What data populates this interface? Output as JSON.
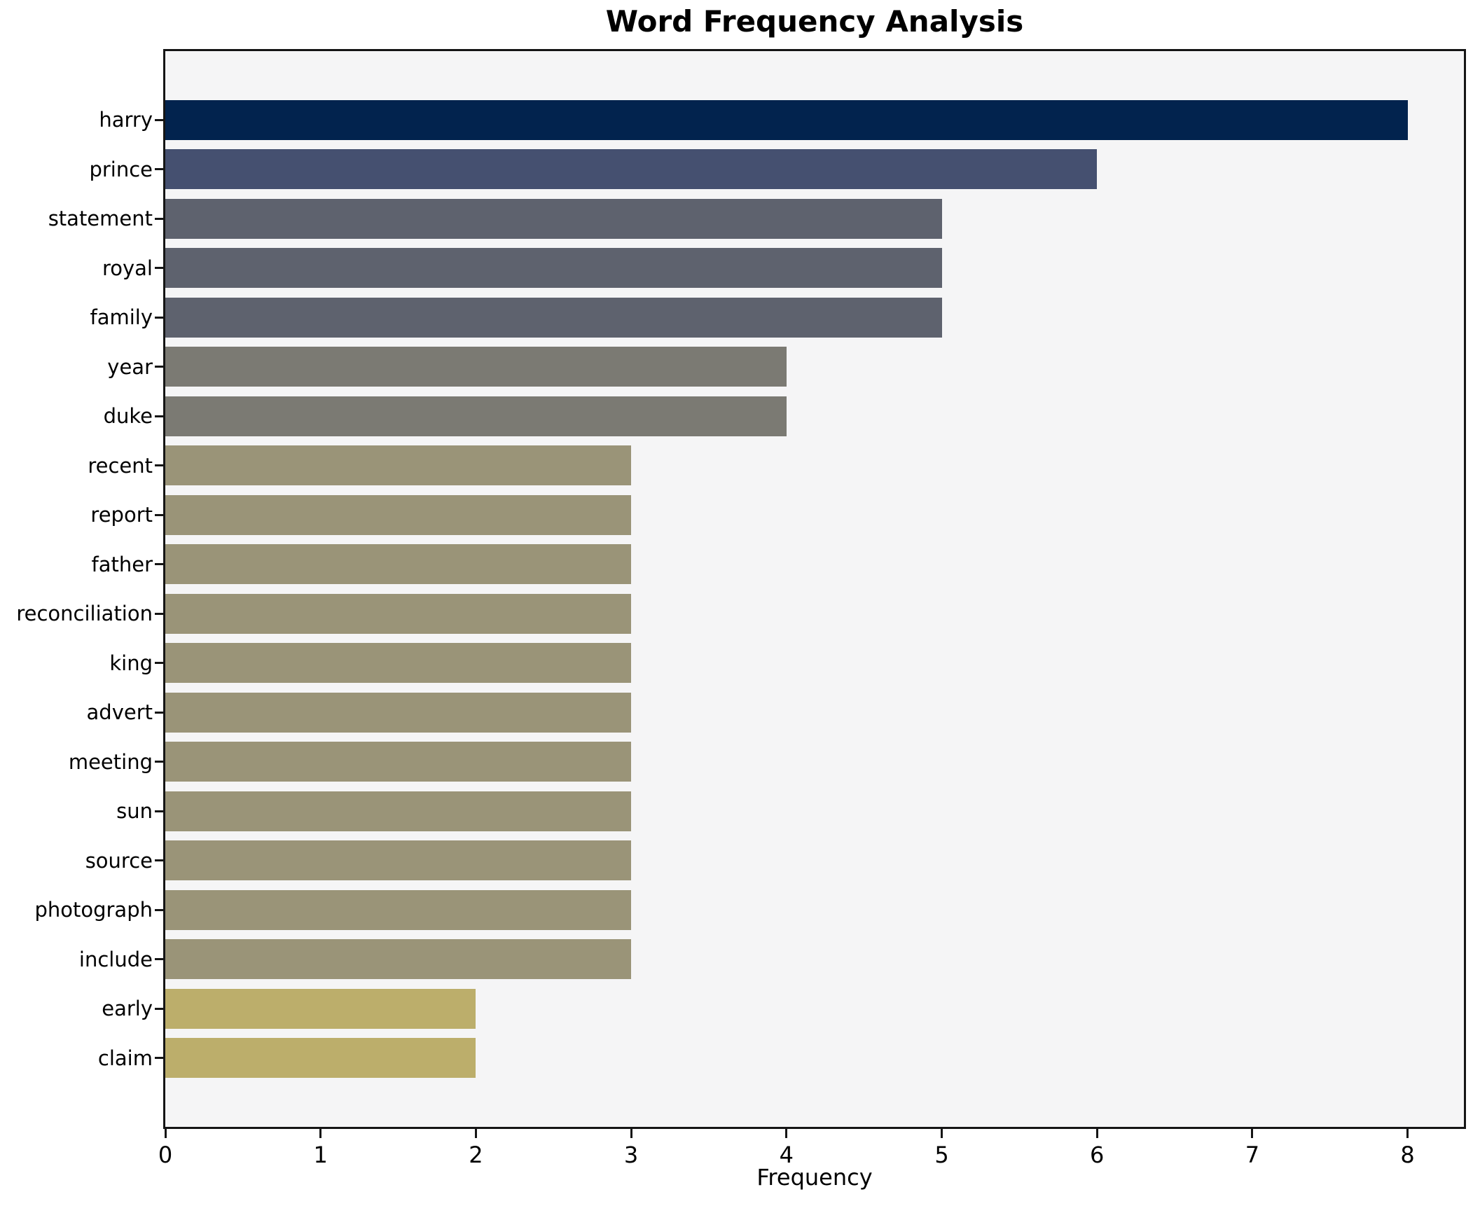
{
  "figure": {
    "title": "Word Frequency Analysis",
    "xlabel": "Frequency"
  },
  "chart_data": {
    "type": "bar",
    "orientation": "horizontal",
    "title": "Word Frequency Analysis",
    "xlabel": "Frequency",
    "ylabel": "",
    "categories": [
      "harry",
      "prince",
      "statement",
      "royal",
      "family",
      "year",
      "duke",
      "recent",
      "report",
      "father",
      "reconciliation",
      "king",
      "advert",
      "meeting",
      "sun",
      "source",
      "photograph",
      "include",
      "early",
      "claim"
    ],
    "values": [
      8,
      6,
      5,
      5,
      5,
      4,
      4,
      3,
      3,
      3,
      3,
      3,
      3,
      3,
      3,
      3,
      3,
      3,
      2,
      2
    ],
    "xticks": [
      0,
      1,
      2,
      3,
      4,
      5,
      6,
      7,
      8
    ],
    "xlim": [
      0,
      8.38
    ],
    "grid": false,
    "legend": "none",
    "bar_height_fraction": 0.8,
    "value_colors": {
      "8": "#02234e",
      "6": "#455070",
      "5": "#5e626e",
      "4": "#7b7a73",
      "3": "#9a9478",
      "2": "#bcae6b"
    },
    "plot_background": "#f5f5f6",
    "figure_background": "#ffffff",
    "spine_color": "#151515",
    "text_color": "#000000"
  }
}
